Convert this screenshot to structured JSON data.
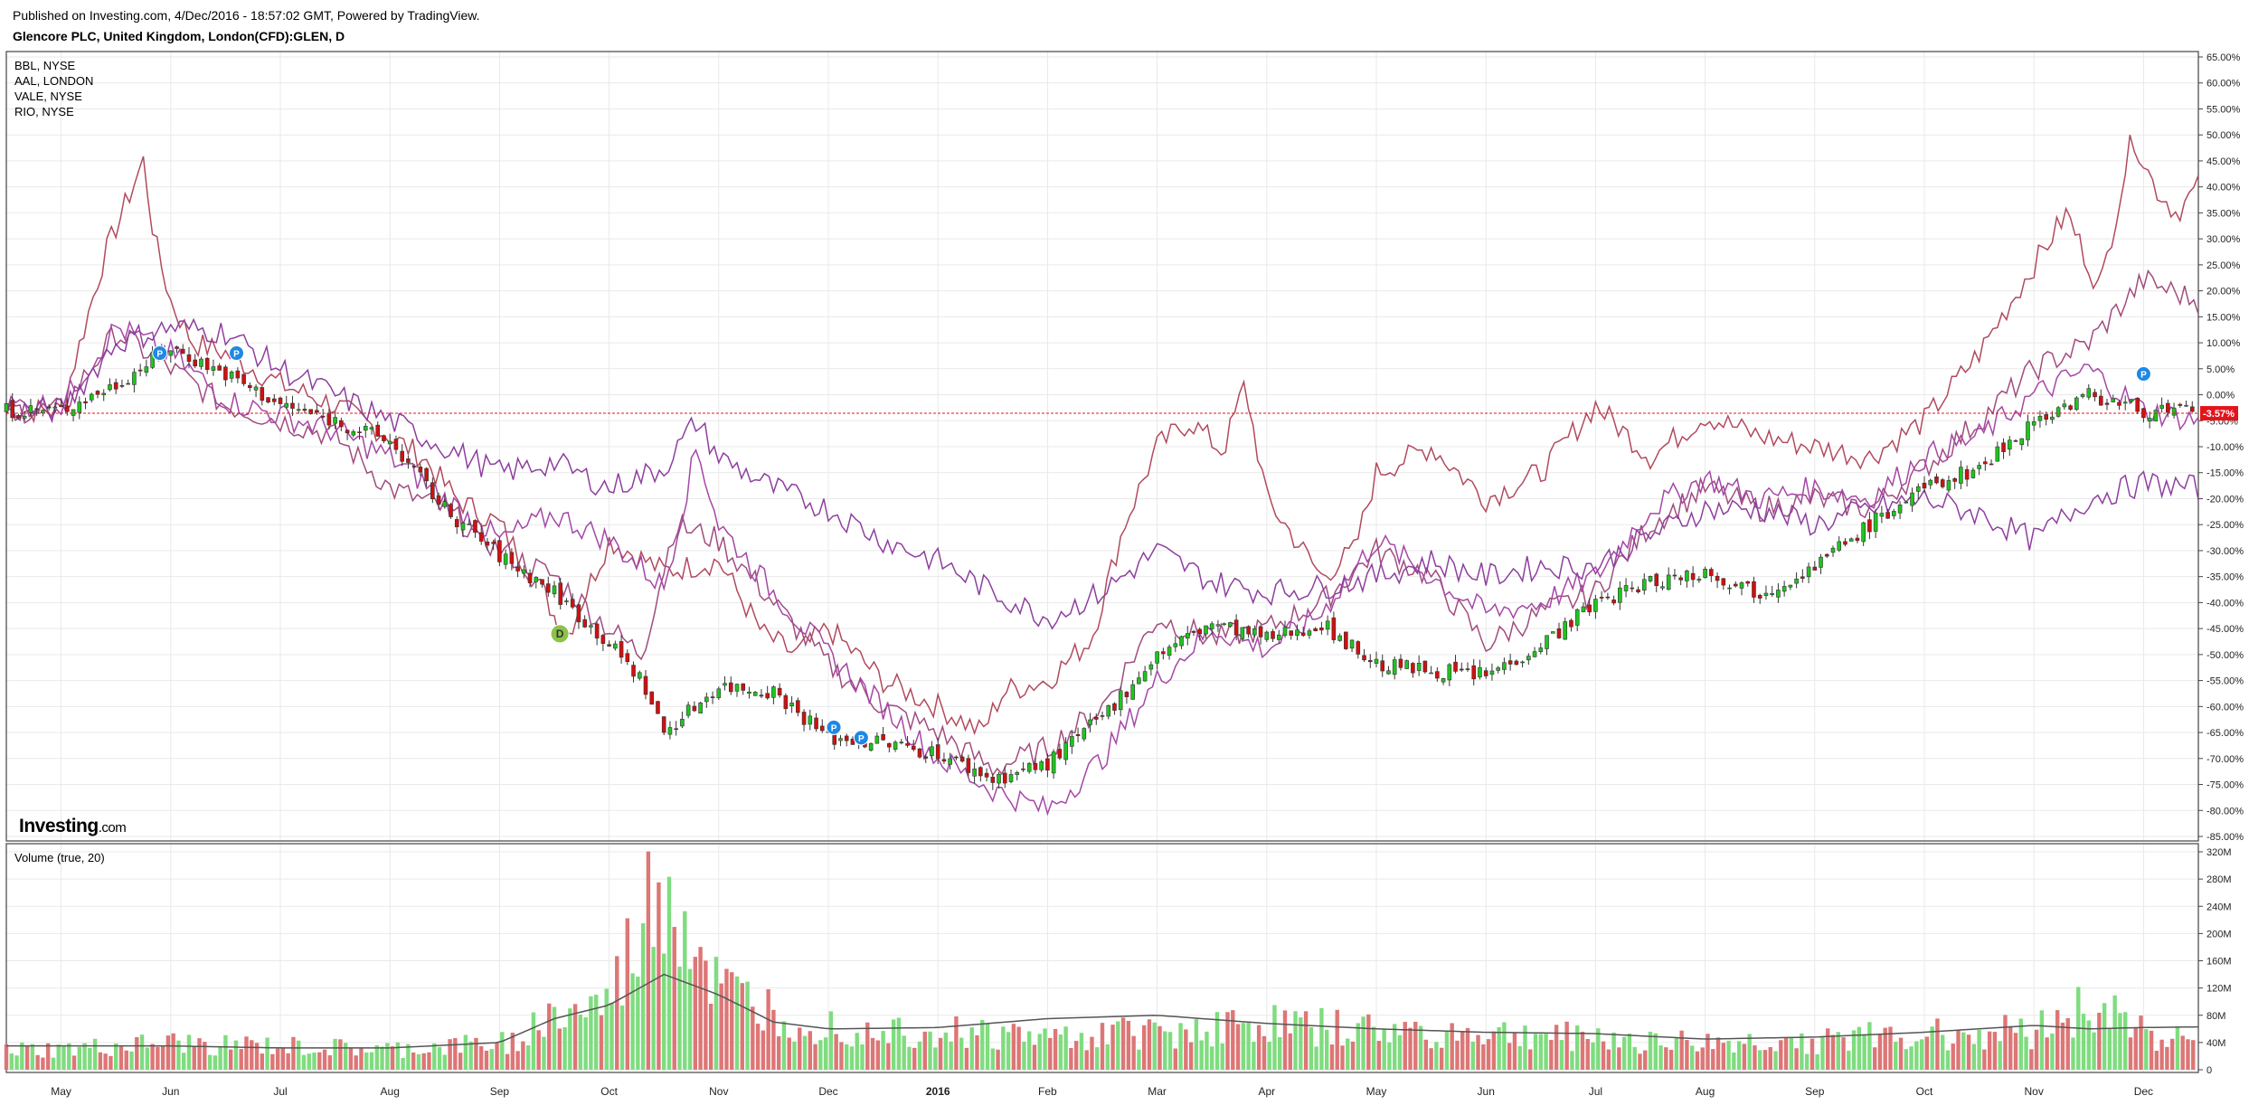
{
  "header": {
    "published": "Published on Investing.com, 4/Dec/2016 - 18:57:02 GMT, Powered by TradingView.",
    "symbol": "Glencore PLC, United Kingdom, London(CFD):GLEN, D"
  },
  "legend": [
    "BBL, NYSE",
    "AAL, LONDON",
    "VALE, NYSE",
    "RIO, NYSE"
  ],
  "logo": {
    "main": "Investing",
    "suffix": ".com"
  },
  "volume_title": "Volume (true, 20)",
  "last_label": "-3.57%",
  "markers": [
    {
      "label": "P",
      "color": "#1e88e5",
      "x": 0.9,
      "y": 8
    },
    {
      "label": "P",
      "color": "#1e88e5",
      "x": 1.6,
      "y": 8
    },
    {
      "label": "D",
      "color": "#8bc34a",
      "x": 4.55,
      "y": -46
    },
    {
      "label": "P",
      "color": "#1e88e5",
      "x": 7.05,
      "y": -64
    },
    {
      "label": "P",
      "color": "#1e88e5",
      "x": 7.3,
      "y": -66
    },
    {
      "label": "P",
      "color": "#1e88e5",
      "x": 19.0,
      "y": 4
    }
  ],
  "colors": {
    "bull": "#1ec51e",
    "bear": "#d01010",
    "vol_bull": "#7fdc7f",
    "vol_bear": "#dd7676",
    "ma": "#555555",
    "grid": "#e9e9e9",
    "last": "#e4141b",
    "s1": "#b14a5e",
    "s2": "#a04c7e",
    "s3": "#a447a6",
    "s4": "#8d3f9e"
  },
  "chart_data": [
    {
      "type": "line",
      "title": "Glencore PLC, United Kingdom, London(CFD):GLEN, D",
      "subtype": "candlestick comparison (percent change)",
      "x_ticks": [
        "May",
        "Jun",
        "Jul",
        "Aug",
        "Sep",
        "Oct",
        "Nov",
        "Dec",
        "2016",
        "Feb",
        "Mar",
        "Apr",
        "May",
        "Jun",
        "Jul",
        "Aug",
        "Sep",
        "Oct",
        "Nov",
        "Dec"
      ],
      "y_ticks": [
        "65.00%",
        "60.00%",
        "55.00%",
        "50.00%",
        "45.00%",
        "40.00%",
        "35.00%",
        "30.00%",
        "25.00%",
        "20.00%",
        "15.00%",
        "10.00%",
        "5.00%",
        "0.00%",
        "-5.00%",
        "-10.00%",
        "-15.00%",
        "-20.00%",
        "-25.00%",
        "-30.00%",
        "-35.00%",
        "-40.00%",
        "-45.00%",
        "-50.00%",
        "-55.00%",
        "-60.00%",
        "-65.00%",
        "-70.00%",
        "-75.00%",
        "-80.00%",
        "-85.00%"
      ],
      "ylim": [
        -85,
        65
      ],
      "series": [
        {
          "name": "GLEN",
          "x": [
            0,
            0.5,
            1,
            1.5,
            2,
            2.5,
            3,
            3.5,
            4,
            4.5,
            5,
            5.3,
            5.5,
            6,
            6.5,
            7,
            7.5,
            8,
            8.5,
            9,
            9.5,
            10,
            10.5,
            11,
            11.5,
            12,
            12.5,
            13,
            13.5,
            14,
            14.5,
            15,
            15.5,
            16,
            16.5,
            17,
            17.5,
            18,
            18.5,
            19,
            19.5
          ],
          "values": [
            -3,
            2,
            9,
            4,
            -2,
            -5,
            -9,
            -22,
            -31,
            -38,
            -48,
            -55,
            -65,
            -56,
            -57,
            -66,
            -67,
            -69,
            -74,
            -71,
            -62,
            -50,
            -44,
            -47,
            -44,
            -52,
            -53,
            -54,
            -48,
            -40,
            -36,
            -34,
            -38,
            -33,
            -25,
            -18,
            -14,
            -5,
            0,
            -3,
            -3.57
          ]
        },
        {
          "name": "BBL, NYSE",
          "x": [
            0,
            0.4,
            0.75,
            0.85,
            1,
            1.2,
            1.5,
            2,
            2.5,
            3,
            3.3,
            3.6,
            4,
            4.4,
            4.6,
            5,
            5.5,
            6,
            6.4,
            6.7,
            7,
            7.5,
            8,
            8.4,
            8.6,
            9,
            9.4,
            9.7,
            10,
            10.3,
            10.6,
            10.8,
            11,
            11.5,
            11.8,
            12,
            12.5,
            13,
            13.5,
            14,
            14.5,
            15,
            15.5,
            16,
            16.5,
            17,
            17.5,
            18,
            18.3,
            18.6,
            18.9,
            19.1,
            19.3,
            19.5
          ],
          "values": [
            -3,
            27,
            45,
            30,
            18,
            10,
            8,
            2,
            -2,
            -8,
            -12,
            -20,
            -25,
            -38,
            -47,
            -28,
            -34,
            -32,
            -46,
            -50,
            -45,
            -55,
            -60,
            -65,
            -57,
            -55,
            -47,
            -25,
            -10,
            -5,
            -11,
            2,
            -20,
            -35,
            -30,
            -15,
            -10,
            -20,
            -15,
            -2,
            -12,
            -4,
            -8,
            -10,
            -12,
            -5,
            8,
            25,
            35,
            20,
            50,
            40,
            35,
            40
          ]
        },
        {
          "name": "AAL, LONDON",
          "x": [
            0,
            0.5,
            1,
            1.5,
            2,
            2.5,
            3,
            3.5,
            4,
            4.5,
            5,
            5.3,
            5.6,
            6,
            6.5,
            7,
            7.5,
            8,
            8.5,
            9,
            9.5,
            10,
            10.5,
            11,
            11.5,
            12,
            12.5,
            13,
            13.5,
            14,
            14.5,
            15,
            15.5,
            16,
            16.5,
            17,
            17.5,
            18,
            18.5,
            19,
            19.5
          ],
          "values": [
            -3,
            12,
            5,
            -2,
            -5,
            -8,
            -18,
            -22,
            -30,
            -35,
            -45,
            -50,
            -25,
            -28,
            -40,
            -52,
            -60,
            -65,
            -72,
            -68,
            -60,
            -43,
            -47,
            -45,
            -40,
            -30,
            -35,
            -48,
            -42,
            -38,
            -25,
            -18,
            -22,
            -20,
            -22,
            -14,
            -5,
            5,
            10,
            22,
            18
          ]
        },
        {
          "name": "VALE, NYSE",
          "x": [
            0,
            0.5,
            1,
            1.5,
            2,
            2.5,
            3,
            3.5,
            4,
            4.5,
            5,
            5.5,
            5.8,
            6,
            6.5,
            7,
            7.5,
            8,
            8.5,
            9,
            9.5,
            10,
            10.5,
            11,
            11.5,
            12,
            12.5,
            13,
            13.5,
            14,
            14.5,
            15,
            15.5,
            16,
            16.5,
            17,
            17.5,
            18,
            18.5,
            19,
            19.5
          ],
          "values": [
            -2,
            13,
            8,
            -1,
            -4,
            -7,
            -12,
            -20,
            -28,
            -23,
            -28,
            -37,
            -10,
            -25,
            -38,
            -50,
            -60,
            -70,
            -76,
            -80,
            -70,
            -55,
            -45,
            -49,
            -42,
            -28,
            -35,
            -42,
            -40,
            -35,
            -22,
            -16,
            -20,
            -18,
            -20,
            -12,
            -8,
            0,
            5,
            -3,
            -5
          ]
        },
        {
          "name": "RIO, NYSE",
          "x": [
            0,
            0.5,
            1,
            1.5,
            2,
            2.5,
            3,
            3.5,
            4,
            4.5,
            5,
            5.5,
            5.8,
            6,
            6.5,
            7,
            7.5,
            8,
            8.5,
            9,
            9.5,
            10,
            10.5,
            11,
            11.5,
            12,
            12.5,
            13,
            13.5,
            14,
            14.5,
            15,
            15.5,
            16,
            16.5,
            17,
            17.5,
            18,
            18.5,
            19,
            19.5
          ],
          "values": [
            -3,
            10,
            13,
            12,
            5,
            0,
            -5,
            -10,
            -15,
            -13,
            -18,
            -14,
            -5,
            -12,
            -18,
            -22,
            -28,
            -32,
            -38,
            -43,
            -38,
            -30,
            -36,
            -38,
            -37,
            -35,
            -32,
            -35,
            -33,
            -33,
            -27,
            -22,
            -22,
            -25,
            -22,
            -20,
            -23,
            -28,
            -20,
            -17,
            -18
          ]
        }
      ]
    },
    {
      "type": "bar",
      "title": "Volume (true, 20)",
      "y_ticks": [
        "320M",
        "280M",
        "240M",
        "200M",
        "160M",
        "120M",
        "80M",
        "40M",
        "0"
      ],
      "ylim": [
        0,
        320
      ],
      "series": [
        {
          "name": "Volume",
          "x": [
            0,
            1,
            2,
            3,
            4,
            4.5,
            5,
            5.5,
            6,
            6.5,
            7,
            8,
            9,
            10,
            11,
            12,
            13,
            14,
            15,
            16,
            17,
            18,
            18.5,
            19,
            19.5
          ],
          "values": [
            30,
            40,
            35,
            30,
            40,
            80,
            100,
            300,
            120,
            90,
            70,
            60,
            50,
            60,
            70,
            60,
            55,
            50,
            40,
            45,
            55,
            60,
            100,
            60,
            40
          ]
        },
        {
          "name": "MA 20",
          "x": [
            0,
            1,
            2,
            3,
            4,
            4.5,
            5,
            5.5,
            6,
            6.5,
            7,
            8,
            9,
            10,
            11,
            12,
            13,
            14,
            15,
            16,
            17,
            18,
            18.5,
            19,
            19.5
          ],
          "values": [
            35,
            35,
            32,
            32,
            40,
            75,
            95,
            140,
            110,
            70,
            60,
            62,
            75,
            80,
            68,
            60,
            55,
            53,
            45,
            48,
            55,
            65,
            60,
            62,
            63
          ]
        }
      ]
    }
  ]
}
